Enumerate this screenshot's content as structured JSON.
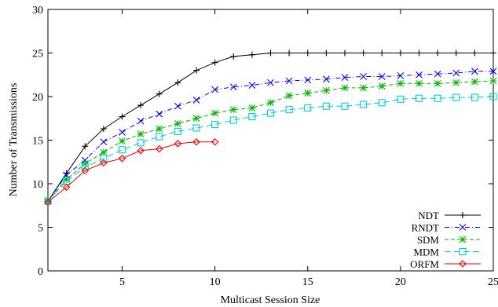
{
  "chart_data": {
    "type": "line",
    "title": "",
    "xlabel": "Multicast Session Size",
    "ylabel": "Number of Transmissions",
    "xlim": [
      1,
      25
    ],
    "ylim": [
      0,
      30
    ],
    "xticks": [
      5,
      10,
      15,
      20,
      25
    ],
    "yticks": [
      0,
      5,
      10,
      15,
      20,
      25,
      30
    ],
    "grid": false,
    "legend_position": "bottom-right",
    "series": [
      {
        "name": "NDT",
        "color": "#000000",
        "marker": "plus",
        "dash": "solid",
        "x": [
          1,
          2,
          3,
          4,
          5,
          6,
          7,
          8,
          9,
          10,
          11,
          12,
          13,
          14,
          15,
          16,
          17,
          18,
          19,
          20,
          21,
          22,
          23,
          24,
          25
        ],
        "y": [
          8.0,
          11.2,
          14.3,
          16.3,
          17.7,
          19.0,
          20.3,
          21.6,
          23.0,
          23.9,
          24.6,
          24.8,
          25.0,
          25.0,
          25.0,
          25.0,
          25.0,
          25.0,
          25.0,
          25.0,
          25.0,
          25.0,
          25.0,
          25.0,
          25.0
        ]
      },
      {
        "name": "RNDT",
        "color": "#0000ff",
        "marker": "x",
        "dash": "dashdot",
        "x": [
          1,
          2,
          3,
          4,
          5,
          6,
          7,
          8,
          9,
          10,
          11,
          12,
          13,
          14,
          15,
          16,
          17,
          18,
          19,
          20,
          21,
          22,
          23,
          24,
          25
        ],
        "y": [
          8.0,
          11.0,
          12.7,
          14.8,
          15.9,
          17.2,
          18.0,
          18.9,
          19.6,
          20.8,
          21.1,
          21.3,
          21.6,
          21.8,
          21.9,
          22.0,
          22.2,
          22.3,
          22.3,
          22.4,
          22.5,
          22.6,
          22.7,
          22.9,
          22.9
        ]
      },
      {
        "name": "SDM",
        "color": "#00b400",
        "marker": "star",
        "dash": "dash",
        "x": [
          1,
          2,
          3,
          4,
          5,
          6,
          7,
          8,
          9,
          10,
          11,
          12,
          13,
          14,
          15,
          16,
          17,
          18,
          19,
          20,
          21,
          22,
          23,
          24,
          25
        ],
        "y": [
          8.0,
          10.5,
          12.3,
          13.6,
          14.9,
          15.7,
          16.3,
          16.9,
          17.5,
          18.1,
          18.5,
          18.7,
          19.3,
          20.1,
          20.4,
          20.7,
          21.0,
          21.0,
          21.2,
          21.5,
          21.5,
          21.5,
          21.6,
          21.7,
          21.8
        ]
      },
      {
        "name": "MDM",
        "color": "#00d0d0",
        "marker": "square",
        "dash": "longdash",
        "x": [
          1,
          2,
          3,
          4,
          5,
          6,
          7,
          8,
          9,
          10,
          11,
          12,
          13,
          14,
          15,
          16,
          17,
          18,
          19,
          20,
          21,
          22,
          23,
          24,
          25
        ],
        "y": [
          8.0,
          10.3,
          11.9,
          12.9,
          13.9,
          14.7,
          15.4,
          16.0,
          16.4,
          16.8,
          17.3,
          17.7,
          18.1,
          18.5,
          18.7,
          18.9,
          18.9,
          19.1,
          19.3,
          19.7,
          19.8,
          19.8,
          19.9,
          19.9,
          20.0
        ]
      },
      {
        "name": "ORFM",
        "color": "#ee0000",
        "marker": "diamond",
        "dash": "solid",
        "x": [
          1,
          2,
          3,
          4,
          5,
          6,
          7,
          8,
          9,
          10
        ],
        "y": [
          7.9,
          9.6,
          11.5,
          12.4,
          12.9,
          13.8,
          14.0,
          14.6,
          14.8,
          14.8
        ]
      }
    ]
  }
}
